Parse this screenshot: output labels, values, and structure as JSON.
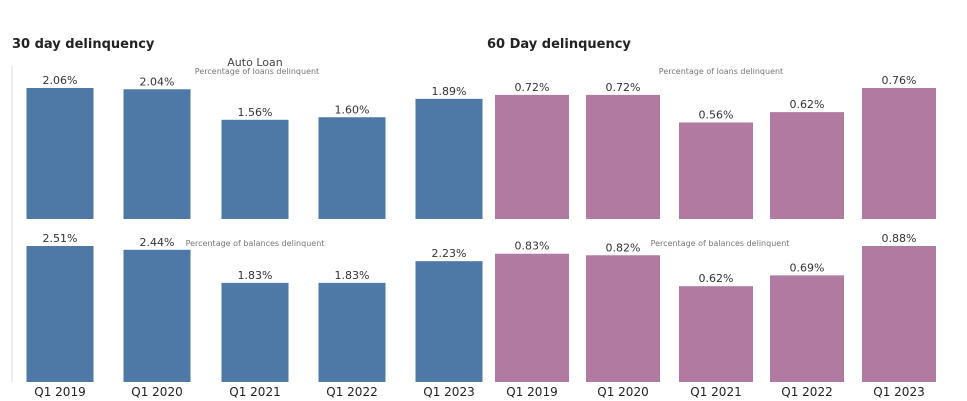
{
  "center_title": "Auto Loan",
  "colors": {
    "blue": "#4e79a7",
    "pink": "#b07aa1"
  },
  "chart_data": [
    {
      "type": "bar",
      "title": "30 day delinquency",
      "categories": [
        "Q1 2019",
        "Q1 2020",
        "Q1 2021",
        "Q1 2022",
        "Q1 2023"
      ],
      "rows": [
        {
          "subtitle": "Percentage of loans delinquent",
          "values": [
            2.06,
            2.04,
            1.56,
            1.6,
            1.89
          ],
          "labels": [
            "2.06%",
            "2.04%",
            "1.56%",
            "1.60%",
            "1.89%"
          ]
        },
        {
          "subtitle": "Percentage of balances delinquent",
          "values": [
            2.51,
            2.44,
            1.83,
            1.83,
            2.23
          ],
          "labels": [
            "2.51%",
            "2.44%",
            "1.83%",
            "1.83%",
            "2.23%"
          ]
        }
      ],
      "color": "#4e79a7"
    },
    {
      "type": "bar",
      "title": "60 Day delinquency",
      "categories": [
        "Q1 2019",
        "Q1 2020",
        "Q1 2021",
        "Q1 2022",
        "Q1 2023"
      ],
      "rows": [
        {
          "subtitle": "Percentage of loans delinquent",
          "values": [
            0.72,
            0.72,
            0.56,
            0.62,
            0.76
          ],
          "labels": [
            "0.72%",
            "0.72%",
            "0.56%",
            "0.62%",
            "0.76%"
          ]
        },
        {
          "subtitle": "Percentage of balances delinquent",
          "values": [
            0.83,
            0.82,
            0.62,
            0.69,
            0.88
          ],
          "labels": [
            "0.83%",
            "0.82%",
            "0.62%",
            "0.69%",
            "0.88%"
          ]
        }
      ],
      "color": "#b07aa1"
    }
  ]
}
